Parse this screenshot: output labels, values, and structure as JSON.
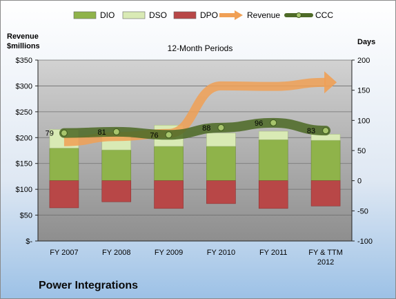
{
  "company": "Power Integrations",
  "chart_data": {
    "type": "bar",
    "title": "12-Month Periods",
    "ylabel_left": [
      "Revenue",
      "$millions"
    ],
    "ylabel_right": "Days",
    "categories": [
      [
        "FY 2007"
      ],
      [
        "FY 2008"
      ],
      [
        "FY 2009"
      ],
      [
        "FY 2010"
      ],
      [
        "FY 2011"
      ],
      [
        "FY & TTM",
        "2012"
      ]
    ],
    "left_axis": {
      "ticks": [
        "$-",
        "$50",
        "$100",
        "$150",
        "$200",
        "$250",
        "$300",
        "$350"
      ],
      "ylim": [
        0,
        350
      ]
    },
    "right_axis": {
      "ticks": [
        "-100",
        "-50",
        "0",
        "50",
        "100",
        "150",
        "200"
      ],
      "ylim": [
        -100,
        200
      ]
    },
    "legend": {
      "position": "top",
      "items": [
        {
          "name": "DIO",
          "kind": "bar",
          "color": "#8fb34a"
        },
        {
          "name": "DSO",
          "kind": "bar",
          "color": "#d9eab5"
        },
        {
          "name": "DPO",
          "kind": "bar",
          "color": "#b84747"
        },
        {
          "name": "Revenue",
          "kind": "arrow",
          "color": "#f0a055"
        },
        {
          "name": "CCC",
          "kind": "line",
          "color": "#4f6b28"
        }
      ]
    },
    "series": [
      {
        "name": "DIO",
        "axis": "right",
        "values": [
          54,
          51,
          57,
          57,
          68,
          67
        ]
      },
      {
        "name": "DSO",
        "axis": "right",
        "values": [
          31,
          26,
          35,
          22,
          14,
          10
        ]
      },
      {
        "name": "DPO",
        "axis": "right",
        "values": [
          -45,
          -35,
          -46,
          -38,
          -46,
          -42
        ]
      },
      {
        "name": "CCC",
        "axis": "right",
        "values": [
          79,
          81,
          76,
          88,
          96,
          83
        ],
        "labels": [
          "79",
          "81",
          "76",
          "88",
          "96",
          "83"
        ]
      },
      {
        "name": "Revenue",
        "axis": "left",
        "values": [
          192,
          202,
          208,
          300,
          299,
          307
        ]
      }
    ]
  }
}
